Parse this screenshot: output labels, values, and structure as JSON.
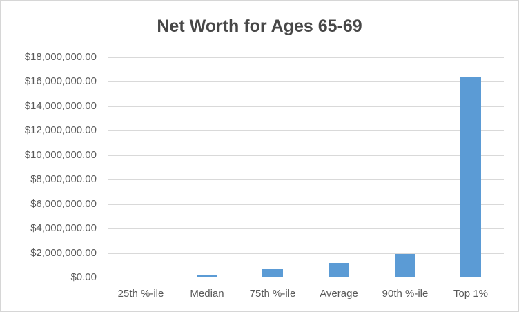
{
  "frame": {
    "background": "#FFFFFF",
    "border_color": "#D6D6D6"
  },
  "chart_data": {
    "type": "bar",
    "title": "Net Worth for Ages 65-69",
    "categories": [
      "25th %-ile",
      "Median",
      "75th %-ile",
      "Average",
      "90th %-ile",
      "Top 1%"
    ],
    "values": [
      0,
      200000,
      700000,
      1200000,
      1900000,
      16400000
    ],
    "xlabel": "",
    "ylabel": "",
    "ylim": [
      0,
      18000000
    ],
    "ytick_step": 2000000,
    "ytick_labels": [
      "$0.00",
      "$2,000,000.00",
      "$4,000,000.00",
      "$6,000,000.00",
      "$8,000,000.00",
      "$10,000,000.00",
      "$12,000,000.00",
      "$14,000,000.00",
      "$16,000,000.00",
      "$18,000,000.00"
    ],
    "grid": "horizontal",
    "legend": "none",
    "bar_color": "#5B9BD5",
    "gridline_color": "#D9D9D9",
    "axis_text_color": "#595959",
    "title_color": "#474747"
  }
}
